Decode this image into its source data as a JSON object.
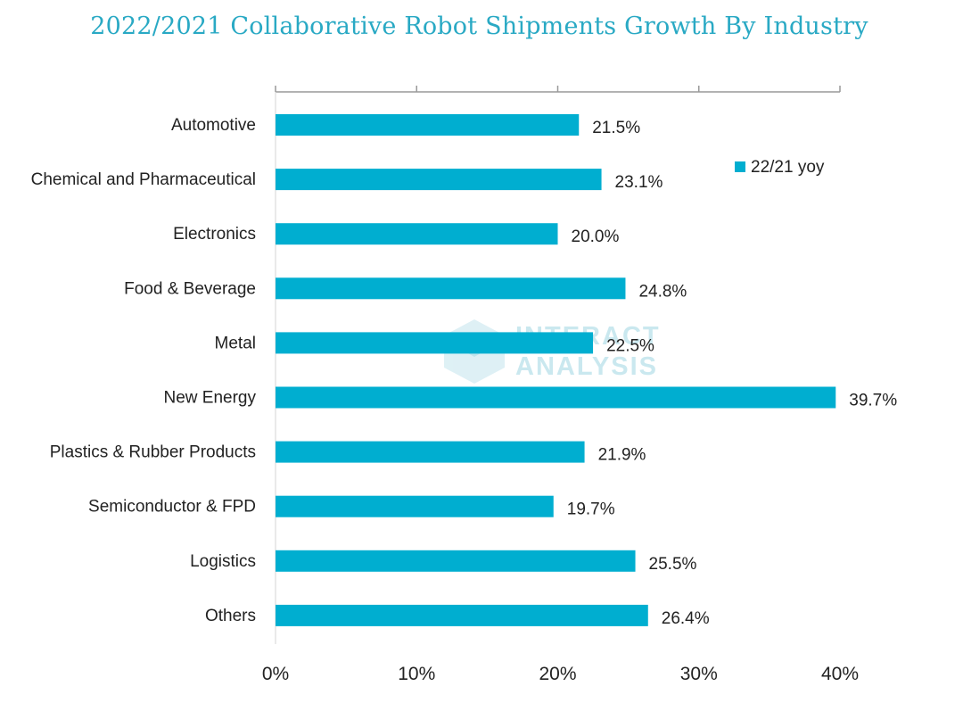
{
  "chart_data": {
    "type": "bar",
    "orientation": "horizontal",
    "title": "2022/2021 Collaborative Robot Shipments Growth By Industry",
    "categories": [
      "Automotive",
      "Chemical and Pharmaceutical",
      "Electronics",
      "Food & Beverage",
      "Metal",
      "New Energy",
      "Plastics & Rubber Products",
      "Semiconductor & FPD",
      "Logistics",
      "Others"
    ],
    "series": [
      {
        "name": "22/21 yoy",
        "values": [
          21.5,
          23.1,
          20.0,
          24.8,
          22.5,
          39.7,
          21.9,
          19.7,
          25.5,
          26.4
        ],
        "labels": [
          "21.5%",
          "23.1%",
          "20.0%",
          "24.8%",
          "22.5%",
          "39.7%",
          "21.9%",
          "19.7%",
          "25.5%",
          "26.4%"
        ]
      }
    ],
    "xlim": [
      0,
      40
    ],
    "x_ticks": [
      0,
      10,
      20,
      30,
      40
    ],
    "x_tick_labels": [
      "0%",
      "10%",
      "20%",
      "30%",
      "40%"
    ],
    "xlabel": "",
    "ylabel": "",
    "grid": false,
    "legend": {
      "position": "top-right"
    },
    "colors": {
      "bar": "#00aed0",
      "title": "#29a9c4",
      "axis": "#999999"
    }
  },
  "watermark": {
    "line1": "INTERACT",
    "line2": "ANALYSIS"
  }
}
